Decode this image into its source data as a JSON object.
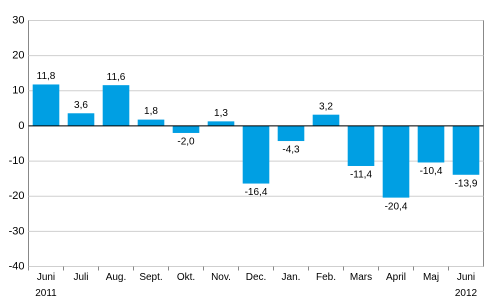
{
  "chart_data": {
    "type": "bar",
    "categories": [
      "Juni",
      "Juli",
      "Aug.",
      "Sept.",
      "Okt.",
      "Nov.",
      "Dec.",
      "Jan.",
      "Feb.",
      "Mars",
      "April",
      "Maj",
      "Juni"
    ],
    "x_sublabels": [
      "2011",
      null,
      null,
      null,
      null,
      null,
      null,
      null,
      null,
      null,
      null,
      null,
      "2012"
    ],
    "values": [
      11.8,
      3.6,
      11.6,
      1.8,
      -2.0,
      1.3,
      -16.4,
      -4.3,
      3.2,
      -11.4,
      -20.4,
      -10.4,
      -13.9
    ],
    "value_labels": [
      "11,8",
      "3,6",
      "11,6",
      "1,8",
      "-2,0",
      "1,3",
      "-16,4",
      "-4,3",
      "3,2",
      "-11,4",
      "-20,4",
      "-10,4",
      "-13,9"
    ],
    "color": "#009fe3",
    "ylim": [
      -40,
      30
    ],
    "yticks": [
      -40,
      -30,
      -20,
      -10,
      0,
      10,
      20,
      30
    ],
    "grid": true
  }
}
